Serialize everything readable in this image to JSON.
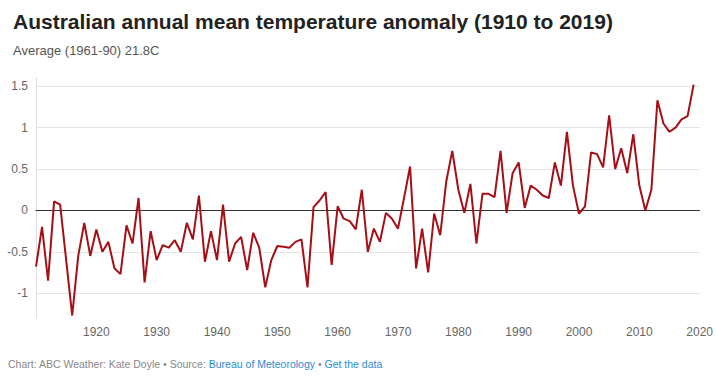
{
  "chart_data": {
    "type": "line",
    "title": "Australian annual mean temperature anomaly (1910 to 2019)",
    "subtitle": "Average (1961-90) 21.8C",
    "footer": {
      "credit": "Chart: ABC Weather: Kate Doyle",
      "separator": "•",
      "source_label": "Source:",
      "source": "Bureau of Meteorology",
      "link": "Get the data"
    },
    "x": [
      1910,
      1911,
      1912,
      1913,
      1914,
      1915,
      1916,
      1917,
      1918,
      1919,
      1920,
      1921,
      1922,
      1923,
      1924,
      1925,
      1926,
      1927,
      1928,
      1929,
      1930,
      1931,
      1932,
      1933,
      1934,
      1935,
      1936,
      1937,
      1938,
      1939,
      1940,
      1941,
      1942,
      1943,
      1944,
      1945,
      1946,
      1947,
      1948,
      1949,
      1950,
      1951,
      1952,
      1953,
      1954,
      1955,
      1956,
      1957,
      1958,
      1959,
      1960,
      1961,
      1962,
      1963,
      1964,
      1965,
      1966,
      1967,
      1968,
      1969,
      1970,
      1971,
      1972,
      1973,
      1974,
      1975,
      1976,
      1977,
      1978,
      1979,
      1980,
      1981,
      1982,
      1983,
      1984,
      1985,
      1986,
      1987,
      1988,
      1989,
      1990,
      1991,
      1992,
      1993,
      1994,
      1995,
      1996,
      1997,
      1998,
      1999,
      2000,
      2001,
      2002,
      2003,
      2004,
      2005,
      2006,
      2007,
      2008,
      2009,
      2010,
      2011,
      2012,
      2013,
      2014,
      2015,
      2016,
      2017,
      2018,
      2019
    ],
    "values": [
      -0.68,
      -0.2,
      -0.85,
      0.11,
      0.07,
      -0.6,
      -1.27,
      -0.55,
      -0.15,
      -0.55,
      -0.23,
      -0.5,
      -0.38,
      -0.7,
      -0.77,
      -0.18,
      -0.4,
      0.15,
      -0.87,
      -0.25,
      -0.6,
      -0.42,
      -0.45,
      -0.36,
      -0.5,
      -0.15,
      -0.35,
      0.18,
      -0.62,
      -0.25,
      -0.6,
      0.07,
      -0.62,
      -0.4,
      -0.32,
      -0.72,
      -0.27,
      -0.45,
      -0.93,
      -0.6,
      -0.43,
      -0.44,
      -0.45,
      -0.38,
      -0.35,
      -0.93,
      0.04,
      0.12,
      0.22,
      -0.66,
      0.05,
      -0.1,
      -0.13,
      -0.23,
      0.25,
      -0.5,
      -0.22,
      -0.38,
      -0.03,
      -0.1,
      -0.22,
      0.15,
      0.53,
      -0.7,
      -0.22,
      -0.75,
      -0.04,
      -0.3,
      0.35,
      0.72,
      0.25,
      -0.03,
      0.32,
      -0.4,
      0.2,
      0.2,
      0.16,
      0.72,
      -0.03,
      0.45,
      0.58,
      0.03,
      0.3,
      0.25,
      0.18,
      0.15,
      0.58,
      0.3,
      0.95,
      0.3,
      -0.04,
      0.05,
      0.7,
      0.68,
      0.52,
      1.15,
      0.5,
      0.75,
      0.45,
      0.92,
      0.3,
      0.0,
      0.25,
      1.33,
      1.05,
      0.95,
      1.0,
      1.1,
      1.14,
      1.52
    ],
    "color": "#a50f15",
    "xlim": [
      1910,
      2020
    ],
    "xticks": [
      1920,
      1930,
      1940,
      1950,
      1960,
      1970,
      1980,
      1990,
      2000,
      2010,
      2020
    ],
    "ylim": [
      -1.3,
      1.6
    ],
    "yticks": [
      -1,
      -0.5,
      0,
      0.5,
      1,
      1.5
    ],
    "grid": true
  }
}
